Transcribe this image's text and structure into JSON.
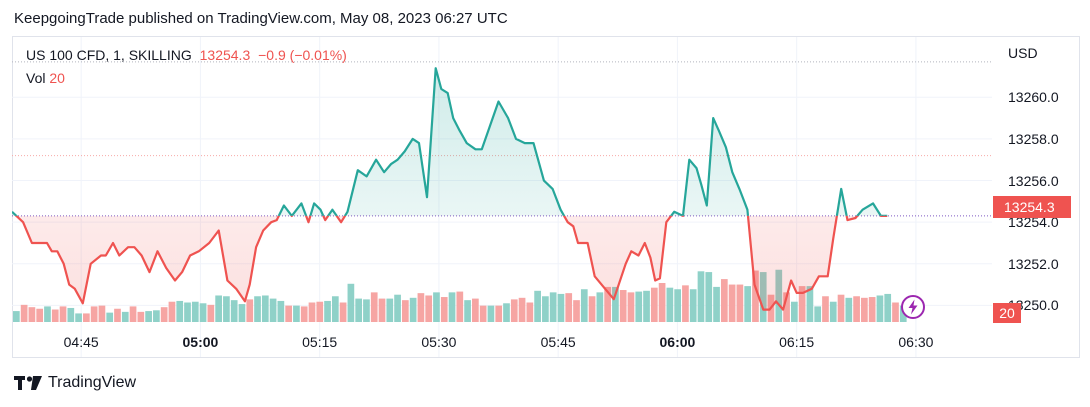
{
  "header": {
    "published": "KeepgoingTrade published on TradingView.com, May 08, 2023 06:27 UTC"
  },
  "legend": {
    "symbol": "US 100 CFD, 1, SKILLING",
    "price": "13254.3",
    "change": "−0.9 (−0.01%)",
    "vol_label": "Vol",
    "vol_value": "20"
  },
  "axis": {
    "currency": "USD",
    "last_price_label": "13254.3",
    "last_volume_label": "20"
  },
  "footer": {
    "brand": "TradingView"
  },
  "colors": {
    "up": "#26a69a",
    "down": "#ef5350",
    "vol_up": "#8fd1c8",
    "vol_down": "#f6a5a3"
  },
  "chart_data": {
    "type": "line",
    "title": "US 100 CFD, 1, SKILLING",
    "xlabel": "",
    "ylabel": "",
    "ylim": [
      13248.8,
      13262.6
    ],
    "baseline": 13254.3,
    "y_ticks": [
      "13250.0",
      "13252.0",
      "13254.0",
      "13256.0",
      "13258.0",
      "13260.0"
    ],
    "x_ticks": [
      {
        "label": "04:45",
        "bold": false
      },
      {
        "label": "05:00",
        "bold": true
      },
      {
        "label": "05:15",
        "bold": false
      },
      {
        "label": "05:30",
        "bold": false
      },
      {
        "label": "05:45",
        "bold": false
      },
      {
        "label": "06:00",
        "bold": true
      },
      {
        "label": "06:15",
        "bold": false
      },
      {
        "label": "06:30",
        "bold": false
      }
    ],
    "x_tick_minutes": [
      285,
      300,
      315,
      330,
      345,
      360,
      375,
      390
    ],
    "x_start_minute": 276.3,
    "series": [
      {
        "t": [
          276.3,
          277.7,
          278.8,
          279.8,
          280.7,
          281.3,
          282.0,
          282.8,
          283.5,
          284.2,
          285.2,
          286.2,
          287.5,
          288.1,
          289.0,
          289.8,
          290.9,
          291.7,
          292.6,
          293.6,
          294.6,
          295.7,
          296.8,
          297.7,
          298.7,
          299.8,
          301.1,
          302.3,
          303.4,
          304.5,
          305.6,
          306.2,
          307.0,
          307.9,
          308.9,
          309.6,
          310.5,
          311.5,
          312.7,
          313.6,
          314.3,
          315.1,
          315.7,
          316.6,
          317.7,
          318.5,
          319.8,
          320.9,
          322.1,
          323.1,
          324.0,
          324.8,
          325.7,
          326.7,
          327.5,
          328.5,
          329.6,
          330.3,
          331.1,
          331.8,
          332.6,
          333.5,
          334.6,
          335.4,
          336.4,
          337.5,
          338.7,
          339.7,
          340.8,
          341.9,
          343.2,
          344.3,
          345.3,
          346.2,
          346.9,
          347.5,
          348.7,
          349.6,
          350.9,
          352.0,
          353.5,
          354.2,
          355.1,
          355.9,
          356.6,
          357.2,
          357.8,
          358.6,
          359.6,
          360.7,
          361.5,
          362.4,
          363.0,
          363.7,
          364.5,
          365.2,
          366.1,
          366.9,
          367.8,
          368.8,
          369.7,
          370.8,
          371.6,
          372.4,
          373.3,
          374.3,
          375.0,
          375.8,
          376.9,
          377.8,
          378.9,
          379.6,
          380.6,
          381.4,
          382.4,
          383.3,
          384.6,
          385.6,
          386.4
        ],
        "y": [
          13254.5,
          13254.0,
          13253.0,
          13253.0,
          13253.0,
          13252.6,
          13252.6,
          13252.0,
          13251.0,
          13250.8,
          13250.1,
          13252.0,
          13252.4,
          13252.4,
          13253.0,
          13252.4,
          13252.8,
          13252.8,
          13252.4,
          13251.6,
          13252.6,
          13251.8,
          13251.2,
          13251.6,
          13252.4,
          13252.6,
          13253.0,
          13253.6,
          13251.2,
          13250.8,
          13250.2,
          13251.0,
          13252.8,
          13253.6,
          13254.0,
          13254.1,
          13254.8,
          13254.3,
          13254.9,
          13254.0,
          13254.9,
          13254.6,
          13254.1,
          13254.6,
          13254.0,
          13254.5,
          13256.5,
          13256.2,
          13257.0,
          13256.4,
          13256.8,
          13257.0,
          13257.4,
          13258.0,
          13257.8,
          13255.2,
          13261.4,
          13260.4,
          13260.2,
          13259.0,
          13258.4,
          13257.8,
          13257.5,
          13257.5,
          13258.6,
          13259.8,
          13259.0,
          13258.0,
          13257.8,
          13257.8,
          13256.0,
          13255.6,
          13254.6,
          13254.0,
          13253.8,
          13253.0,
          13253.0,
          13251.4,
          13250.8,
          13250.3,
          13252.0,
          13252.6,
          13252.4,
          13253.0,
          13252.3,
          13251.2,
          13251.3,
          13254.0,
          13254.5,
          13254.3,
          13257.0,
          13256.6,
          13255.8,
          13254.8,
          13259.0,
          13258.4,
          13257.6,
          13256.4,
          13255.6,
          13254.6,
          13251.0,
          13249.8,
          13249.8,
          13250.2,
          13249.8,
          13251.2,
          13250.6,
          13250.6,
          13250.8,
          13251.4,
          13251.4,
          13253.2,
          13255.6,
          13254.1,
          13254.2,
          13254.6,
          13254.9,
          13254.3,
          13254.3
        ]
      }
    ],
    "volume": [
      14,
      22,
      19,
      17,
      20,
      16,
      20,
      18,
      11,
      11,
      20,
      21,
      12,
      17,
      13,
      20,
      13,
      14,
      15,
      19,
      26,
      27,
      25,
      26,
      24,
      22,
      34,
      33,
      28,
      23,
      29,
      33,
      34,
      30,
      27,
      21,
      21,
      20,
      25,
      26,
      27,
      33,
      25,
      49,
      30,
      29,
      38,
      30,
      30,
      35,
      28,
      31,
      37,
      34,
      38,
      32,
      38,
      39,
      28,
      30,
      21,
      21,
      21,
      24,
      29,
      31,
      25,
      40,
      33,
      38,
      36,
      37,
      28,
      42,
      33,
      38,
      45,
      45,
      41,
      38,
      39,
      40,
      44,
      50,
      44,
      42,
      47,
      42,
      65,
      64,
      45,
      55,
      48,
      48,
      46,
      66,
      64,
      35,
      67,
      38,
      26,
      46,
      46,
      20,
      33,
      26,
      35,
      31,
      33,
      31,
      32,
      34,
      36,
      25,
      21
    ],
    "volume_up": [
      1,
      0,
      0,
      0,
      1,
      0,
      0,
      1,
      1,
      0,
      0,
      0,
      1,
      0,
      1,
      0,
      0,
      1,
      1,
      0,
      0,
      1,
      1,
      1,
      1,
      0,
      1,
      1,
      1,
      1,
      0,
      1,
      1,
      1,
      1,
      0,
      1,
      0,
      0,
      0,
      1,
      1,
      0,
      1,
      1,
      1,
      0,
      0,
      1,
      1,
      0,
      1,
      0,
      0,
      1,
      0,
      1,
      0,
      1,
      0,
      0,
      1,
      0,
      1,
      0,
      0,
      0,
      1,
      1,
      1,
      1,
      0,
      0,
      1,
      0,
      1,
      0,
      1,
      0,
      0,
      1,
      1,
      0,
      0,
      1,
      1,
      0,
      1,
      1,
      1,
      1,
      0,
      0,
      0,
      1,
      0,
      1,
      0,
      1,
      0,
      1,
      0,
      1,
      1,
      0,
      1,
      0,
      1,
      0,
      0,
      0,
      1,
      1,
      0,
      1
    ]
  }
}
